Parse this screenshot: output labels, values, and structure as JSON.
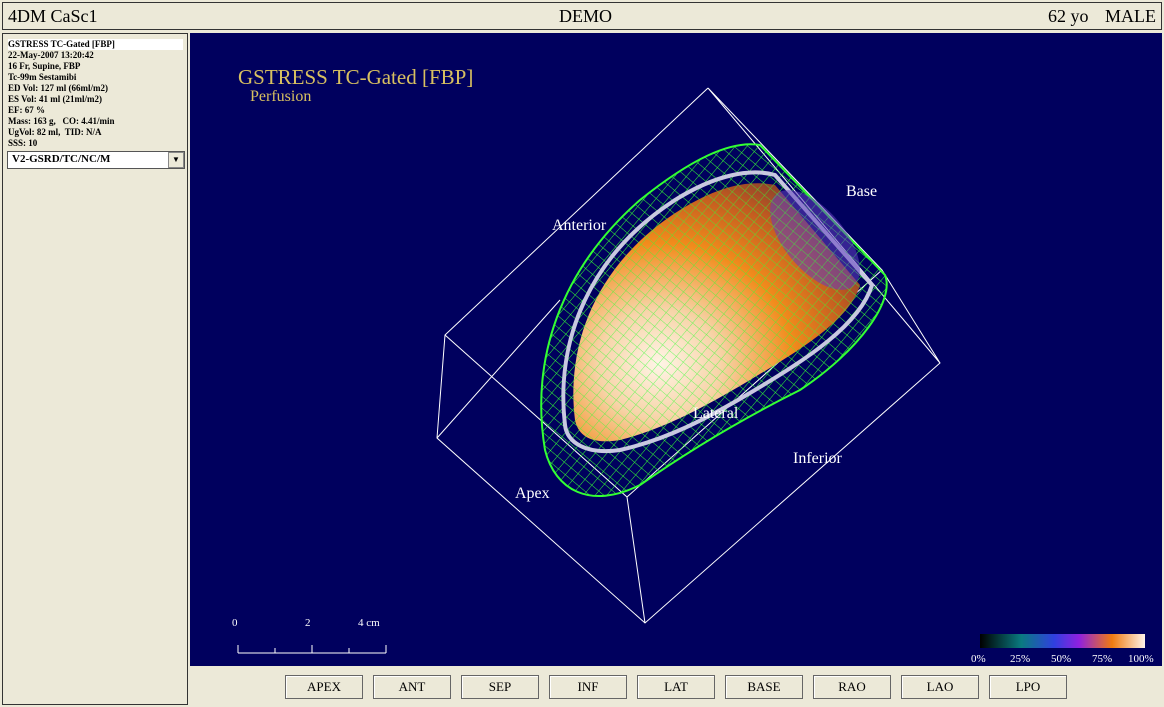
{
  "header": {
    "app": "4DM CaSc1",
    "patient": "DEMO",
    "age": "62 yo",
    "sex": "MALE"
  },
  "sidebar": {
    "lines": [
      "GSTRESS TC-Gated [FBP]",
      "22-May-2007 13:20:42",
      "16 Fr, Supine, FBP",
      "Tc-99m Sestamibi",
      "ED Vol: 127 ml (66ml/m2)",
      "ES Vol: 41 ml (21ml/m2)",
      "EF: 67 %",
      "Mass: 163 g,   CO: 4.41/min",
      "UgVol: 82 ml,  TID: N/A",
      "SSS: 10"
    ],
    "dropdown": "V2-GSRD/TC/NC/M"
  },
  "view": {
    "title": "GSTRESS TC-Gated [FBP]",
    "subtitle": "Perfusion",
    "labels": {
      "anterior": "Anterior",
      "base": "Base",
      "lateral": "Lateral",
      "inferior": "Inferior",
      "apex": "Apex"
    },
    "scale": [
      "0",
      "2",
      "4 cm"
    ],
    "colorbar": [
      "0%",
      "25%",
      "50%",
      "75%",
      "100%"
    ]
  },
  "buttons": [
    "APEX",
    "ANT",
    "SEP",
    "INF",
    "LAT",
    "BASE",
    "RAO",
    "LAO",
    "LPO"
  ]
}
